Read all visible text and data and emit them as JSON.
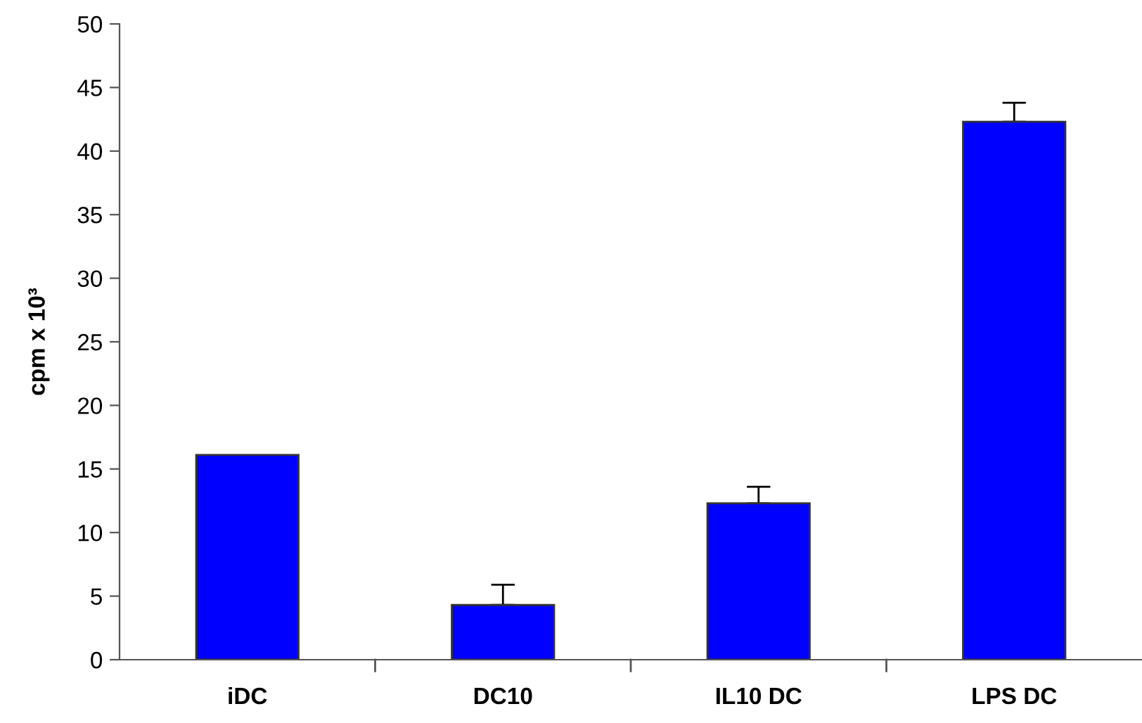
{
  "chart_data": {
    "type": "bar",
    "ylabel": "cpm x 10³",
    "categories": [
      "iDC",
      "DC10",
      "IL10 DC",
      "LPS DC"
    ],
    "values": [
      16.1,
      4.3,
      12.3,
      42.3
    ],
    "errors": [
      null,
      [
        4.3,
        5.9
      ],
      [
        12.3,
        13.6
      ],
      [
        42.3,
        43.8
      ]
    ],
    "color": "#0000ff",
    "ylim": [
      0,
      50
    ],
    "yticks": [
      0,
      5,
      10,
      15,
      20,
      25,
      30,
      35,
      40,
      45,
      50
    ],
    "grid": false,
    "legend": false
  }
}
